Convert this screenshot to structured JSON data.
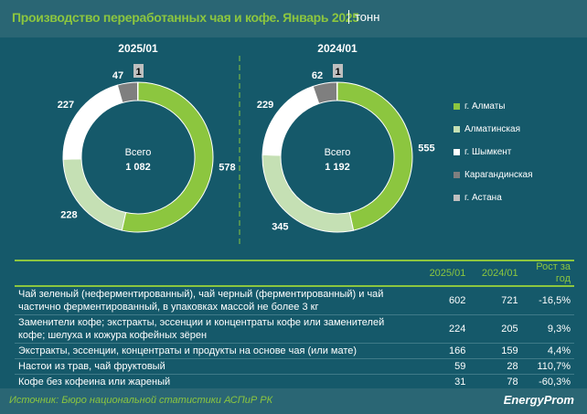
{
  "header": {
    "title": "Производство переработанных чая и кофе. Январь 2025",
    "unit": "тонн"
  },
  "chart_data": [
    {
      "type": "pie",
      "title": "2025/01",
      "total_label": "Всего",
      "total": "1 082",
      "categories": [
        "г. Алматы",
        "Алматинская",
        "г. Шымкент",
        "Карагандинская",
        "г. Астана"
      ],
      "values": [
        578,
        228,
        227,
        47,
        1
      ]
    },
    {
      "type": "pie",
      "title": "2024/01",
      "total_label": "Всего",
      "total": "1 192",
      "categories": [
        "г. Алматы",
        "Алматинская",
        "г. Шымкент",
        "Карагандинская",
        "г. Астана"
      ],
      "values": [
        555,
        345,
        229,
        62,
        1
      ]
    }
  ],
  "colors": [
    "#8cc63f",
    "#c5e0b4",
    "#ffffff",
    "#7f7f7f",
    "#bfbfbf"
  ],
  "legend": [
    "г. Алматы",
    "Алматинская",
    "г. Шымкент",
    "Карагандинская",
    "г. Астана"
  ],
  "table": {
    "headers": [
      "",
      "2025/01",
      "2024/01",
      "Рост за год"
    ],
    "rows": [
      [
        "Чай зеленый (неферментированный), чай черный (ферментированный) и чай частично ферментированный, в упаковках массой не более 3 кг",
        "602",
        "721",
        "-16,5%"
      ],
      [
        "Заменители кофе; экстракты, эссенции и концентраты кофе или заменителей кофе; шелуха и кожура кофейных зёрен",
        "224",
        "205",
        "9,3%"
      ],
      [
        "Экстракты, эссенции, концентраты и продукты на основе чая (или мате)",
        "166",
        "159",
        "4,4%"
      ],
      [
        "Настои из трав, чай фруктовый",
        "59",
        "28",
        "110,7%"
      ],
      [
        "Кофе без кофеина или жареный",
        "31",
        "78",
        "-60,3%"
      ]
    ]
  },
  "footer": {
    "source": "Источник: Бюро национальной статистики АСПиР РК",
    "logo": "EnergyProm"
  }
}
